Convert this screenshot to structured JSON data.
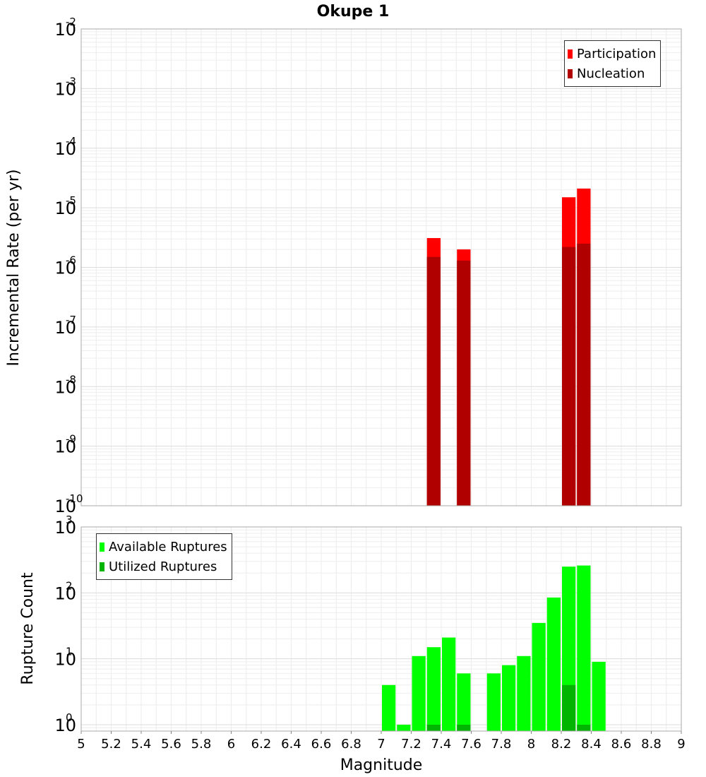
{
  "chart_data": [
    {
      "type": "bar",
      "title": "Okupe 1",
      "xlabel": "",
      "ylabel": "Incremental Rate (per yr)",
      "yscale": "log",
      "xlim": [
        5,
        9
      ],
      "ylim": [
        1e-10,
        0.01
      ],
      "y_tick_exponents": [
        "-10",
        "-9",
        "-8",
        "-7",
        "-6",
        "-5",
        "-4",
        "-3",
        "-2"
      ],
      "grid": true,
      "legend": "top-right",
      "series": [
        {
          "name": "Participation",
          "color": "#ff0000",
          "x": [
            7.35,
            7.55,
            8.25,
            8.35
          ],
          "values": [
            3.1e-06,
            2e-06,
            1.5e-05,
            2.1e-05
          ]
        },
        {
          "name": "Nucleation",
          "color": "#b00000",
          "x": [
            7.35,
            7.55,
            8.25,
            8.35
          ],
          "values": [
            1.5e-06,
            1.3e-06,
            2.2e-06,
            2.5e-06
          ]
        }
      ]
    },
    {
      "type": "bar",
      "title": "",
      "xlabel": "Magnitude",
      "ylabel": "Rupture Count",
      "yscale": "log",
      "xlim": [
        5,
        9
      ],
      "ylim": [
        0.8,
        1000
      ],
      "y_tick_exponents": [
        "0",
        "1",
        "2",
        "3"
      ],
      "x_ticks": [
        "5",
        "5.2",
        "5.4",
        "5.6",
        "5.8",
        "6",
        "6.2",
        "6.4",
        "6.6",
        "6.8",
        "7",
        "7.2",
        "7.4",
        "7.6",
        "7.8",
        "8",
        "8.2",
        "8.4",
        "8.6",
        "8.8",
        "9"
      ],
      "grid": true,
      "legend": "top-left",
      "series": [
        {
          "name": "Available Ruptures",
          "color": "#00ff00",
          "x": [
            7.05,
            7.15,
            7.25,
            7.35,
            7.45,
            7.55,
            7.75,
            7.85,
            7.95,
            8.05,
            8.15,
            8.25,
            8.35,
            8.45
          ],
          "values": [
            4,
            1,
            11,
            15,
            21,
            6,
            6,
            8,
            11,
            35,
            85,
            250,
            260,
            9
          ]
        },
        {
          "name": "Utilized Ruptures",
          "color": "#00b400",
          "x": [
            7.35,
            7.55,
            8.25,
            8.35
          ],
          "values": [
            1,
            1,
            4,
            1
          ]
        }
      ]
    }
  ]
}
